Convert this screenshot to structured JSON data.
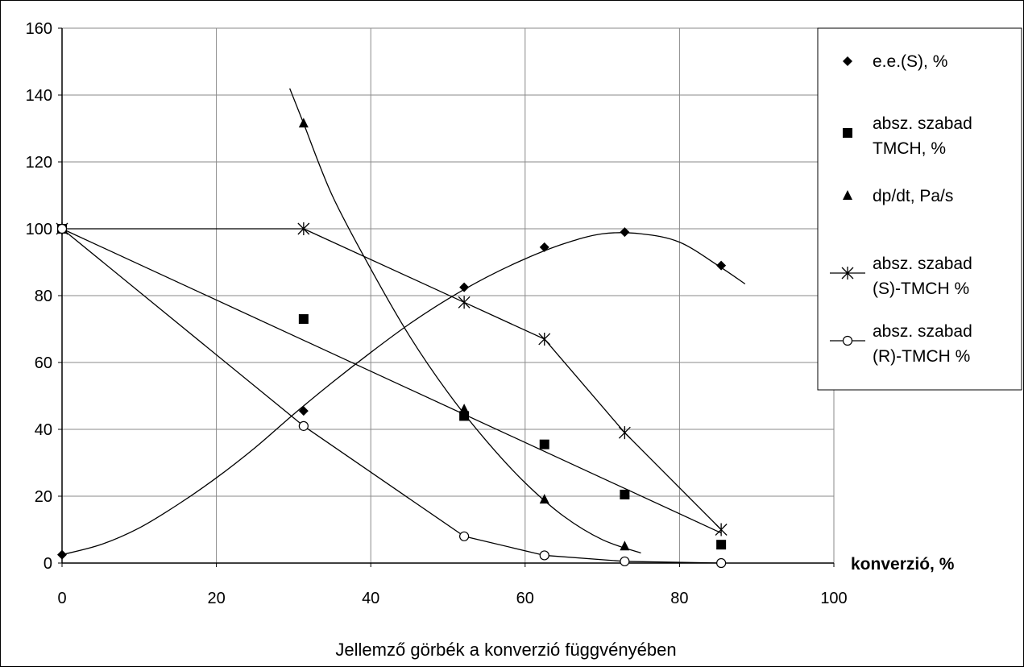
{
  "chart_data": {
    "type": "scatter",
    "title": "",
    "caption": "Jellemző görbék a konverzió függvényében",
    "xlabel": "konverzió, %",
    "ylabel": "",
    "xlim": [
      0,
      100
    ],
    "ylim": [
      0,
      160
    ],
    "x_ticks": [
      0,
      20,
      40,
      60,
      80,
      100
    ],
    "y_ticks": [
      0,
      20,
      40,
      60,
      80,
      100,
      120,
      140,
      160
    ],
    "grid": "vertical and horizontal",
    "legend_position": "right",
    "series": [
      {
        "name": "e.e.(S), %",
        "marker": "diamond",
        "line": "smooth-trend",
        "points": [
          [
            0,
            2.5
          ],
          [
            31.3,
            45.5
          ],
          [
            52.1,
            82.5
          ],
          [
            62.5,
            94.5
          ],
          [
            72.9,
            99
          ],
          [
            85.4,
            89
          ]
        ],
        "trend": [
          [
            0,
            2.5
          ],
          [
            5,
            5.5
          ],
          [
            10,
            10.5
          ],
          [
            15,
            17.5
          ],
          [
            20,
            25.5
          ],
          [
            25,
            34.5
          ],
          [
            30,
            44.5
          ],
          [
            35,
            54
          ],
          [
            40,
            63
          ],
          [
            45,
            71.5
          ],
          [
            50,
            79
          ],
          [
            55,
            85.5
          ],
          [
            60,
            91
          ],
          [
            65,
            95.5
          ],
          [
            70,
            98.5
          ],
          [
            75,
            98.5
          ],
          [
            80,
            96
          ],
          [
            85,
            89
          ],
          [
            88.5,
            83.5
          ]
        ]
      },
      {
        "name": "absz. szabad TMCH, %",
        "marker": "square",
        "line": "linear-trend",
        "points": [
          [
            0,
            100
          ],
          [
            31.3,
            73
          ],
          [
            52.1,
            44
          ],
          [
            62.5,
            35.5
          ],
          [
            72.9,
            20.5
          ],
          [
            85.4,
            5.5
          ]
        ],
        "trend": [
          [
            0,
            100
          ],
          [
            85.4,
            9
          ]
        ]
      },
      {
        "name": "dp/dt, Pa/s",
        "marker": "triangle",
        "line": "smooth-trend",
        "points": [
          [
            31.3,
            131.5
          ],
          [
            52.1,
            46
          ],
          [
            62.5,
            19
          ],
          [
            72.9,
            5
          ]
        ],
        "trend": [
          [
            29.5,
            142
          ],
          [
            31.3,
            131.5
          ],
          [
            35,
            110
          ],
          [
            40,
            88
          ],
          [
            45,
            68
          ],
          [
            50,
            51
          ],
          [
            55,
            36.5
          ],
          [
            60,
            24
          ],
          [
            65,
            14
          ],
          [
            70,
            7
          ],
          [
            75,
            3
          ]
        ]
      },
      {
        "name": "absz. szabad (S)-TMCH %",
        "marker": "star",
        "line": "connected",
        "points": [
          [
            0,
            100
          ],
          [
            31.3,
            100
          ],
          [
            52.1,
            78
          ],
          [
            62.5,
            67
          ],
          [
            72.9,
            39
          ],
          [
            85.4,
            10
          ]
        ]
      },
      {
        "name": "absz. szabad (R)-TMCH %",
        "marker": "circle-open",
        "line": "connected",
        "points": [
          [
            0,
            100
          ],
          [
            31.3,
            41
          ],
          [
            52.1,
            8
          ],
          [
            62.5,
            2.3
          ],
          [
            72.9,
            0.5
          ],
          [
            85.4,
            0
          ]
        ]
      }
    ],
    "legend": [
      {
        "lines": [
          "e.e.(S), %"
        ],
        "marker": "diamond",
        "sample_line": false
      },
      {
        "lines": [
          " absz. szabad",
          "TMCH, %"
        ],
        "marker": "square",
        "sample_line": false
      },
      {
        "lines": [
          "dp/dt, Pa/s"
        ],
        "marker": "triangle",
        "sample_line": false
      },
      {
        "lines": [
          "absz. szabad",
          "(S)-TMCH %"
        ],
        "marker": "star",
        "sample_line": true
      },
      {
        "lines": [
          "absz. szabad",
          "(R)-TMCH %"
        ],
        "marker": "circle-open",
        "sample_line": true
      }
    ]
  }
}
